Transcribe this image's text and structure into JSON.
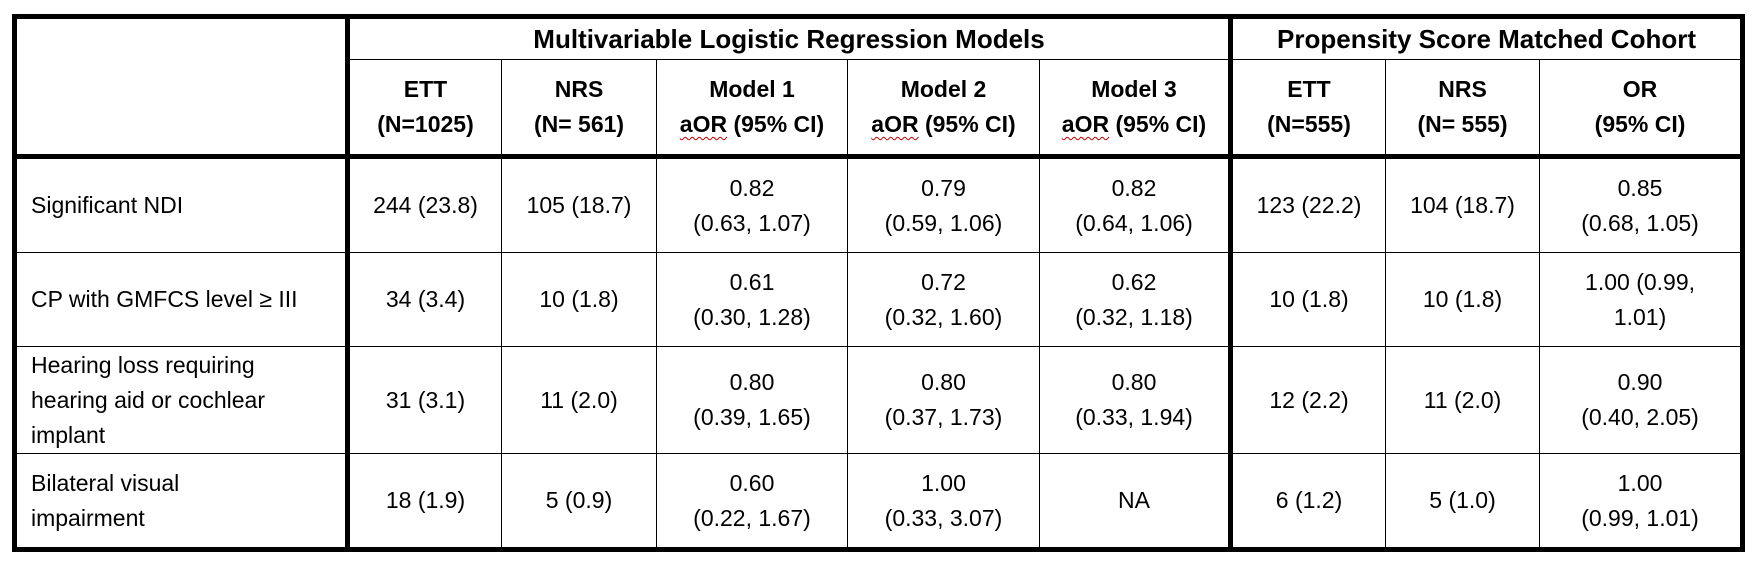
{
  "table": {
    "group_headers": {
      "mlr": "Multivariable Logistic Regression Models",
      "psm": "Propensity Score Matched Cohort"
    },
    "columns": [
      {
        "line1": "ETT",
        "line2": "(N=1025)"
      },
      {
        "line1": "NRS",
        "line2": "(N= 561)"
      },
      {
        "line1": "Model 1",
        "line2_prefix": "aOR",
        "line2_suffix": " (95% CI)"
      },
      {
        "line1": "Model 2",
        "line2_prefix": "aOR",
        "line2_suffix": " (95% CI)"
      },
      {
        "line1": "Model 3",
        "line2_prefix": "aOR",
        "line2_suffix": " (95% CI)"
      },
      {
        "line1": "ETT",
        "line2": "(N=555)"
      },
      {
        "line1": "NRS",
        "line2": "(N= 555)"
      },
      {
        "line1": "OR",
        "line2": "(95% CI)"
      }
    ],
    "rows": [
      {
        "label": [
          "Significant NDI"
        ],
        "cells": [
          [
            "244 (23.8)"
          ],
          [
            "105 (18.7)"
          ],
          [
            "0.82",
            "(0.63, 1.07)"
          ],
          [
            "0.79",
            "(0.59, 1.06)"
          ],
          [
            "0.82",
            "(0.64, 1.06)"
          ],
          [
            "123 (22.2)"
          ],
          [
            "104 (18.7)"
          ],
          [
            "0.85",
            "(0.68, 1.05)"
          ]
        ]
      },
      {
        "label": [
          "CP with GMFCS level ≥ III"
        ],
        "cells": [
          [
            "34 (3.4)"
          ],
          [
            "10 (1.8)"
          ],
          [
            "0.61",
            "(0.30, 1.28)"
          ],
          [
            "0.72",
            "(0.32, 1.60)"
          ],
          [
            "0.62",
            "(0.32, 1.18)"
          ],
          [
            "10 (1.8)"
          ],
          [
            "10 (1.8)"
          ],
          [
            "1.00 (0.99,",
            "1.01)"
          ]
        ]
      },
      {
        "label": [
          "Hearing loss requiring",
          "hearing aid or cochlear",
          "implant"
        ],
        "cells": [
          [
            "31 (3.1)"
          ],
          [
            "11 (2.0)"
          ],
          [
            "0.80",
            "(0.39, 1.65)"
          ],
          [
            "0.80",
            "(0.37, 1.73)"
          ],
          [
            "0.80",
            "(0.33, 1.94)"
          ],
          [
            "12 (2.2)"
          ],
          [
            "11 (2.0)"
          ],
          [
            "0.90",
            "(0.40, 2.05)"
          ]
        ]
      },
      {
        "label": [
          "Bilateral visual",
          "impairment"
        ],
        "cells": [
          [
            "18 (1.9)"
          ],
          [
            "5 (0.9)"
          ],
          [
            "0.60",
            "(0.22, 1.67)"
          ],
          [
            "1.00",
            "(0.33, 3.07)"
          ],
          [
            "NA"
          ],
          [
            "6 (1.2)"
          ],
          [
            "5 (1.0)"
          ],
          [
            "1.00",
            "(0.99, 1.01)"
          ]
        ]
      }
    ]
  }
}
